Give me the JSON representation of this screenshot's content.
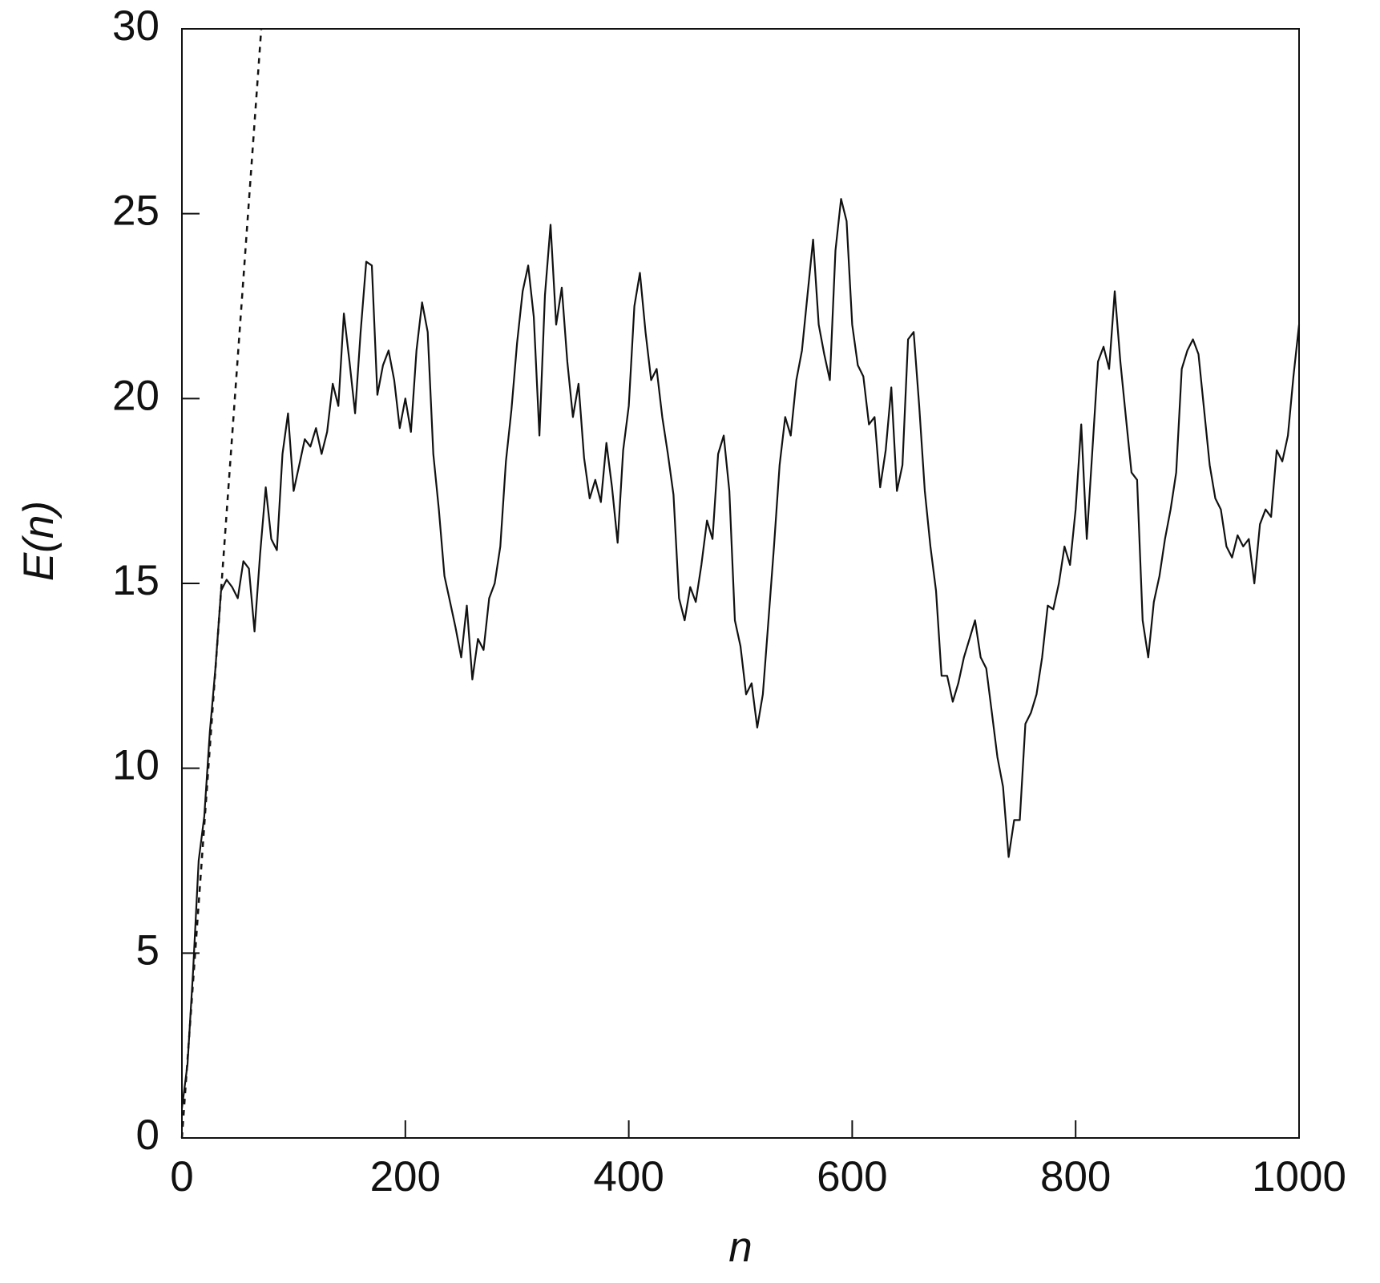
{
  "chart_data": {
    "type": "line",
    "xlabel": "n",
    "ylabel": "E(n)",
    "xlim": [
      0,
      1000
    ],
    "ylim": [
      0,
      30
    ],
    "xticks": [
      0,
      200,
      400,
      600,
      800,
      1000
    ],
    "yticks": [
      0,
      5,
      10,
      15,
      20,
      25,
      30
    ],
    "series": [
      {
        "color": "#111111",
        "dashed": false,
        "x": [
          0,
          5,
          10,
          15,
          20,
          25,
          30,
          35,
          40,
          45,
          50,
          55,
          60,
          65,
          70,
          75,
          80,
          85,
          90,
          95,
          100,
          105,
          110,
          115,
          120,
          125,
          130,
          135,
          140,
          145,
          150,
          155,
          160,
          165,
          170,
          175,
          180,
          185,
          190,
          195,
          200,
          205,
          210,
          215,
          220,
          225,
          230,
          235,
          240,
          245,
          250,
          255,
          260,
          265,
          270,
          275,
          280,
          285,
          290,
          295,
          300,
          305,
          310,
          315,
          320,
          325,
          330,
          335,
          340,
          345,
          350,
          355,
          360,
          365,
          370,
          375,
          380,
          385,
          390,
          395,
          400,
          405,
          410,
          415,
          420,
          425,
          430,
          435,
          440,
          445,
          450,
          455,
          460,
          465,
          470,
          475,
          480,
          485,
          490,
          495,
          500,
          505,
          510,
          515,
          520,
          525,
          530,
          535,
          540,
          545,
          550,
          555,
          560,
          565,
          570,
          575,
          580,
          585,
          590,
          595,
          600,
          605,
          610,
          615,
          620,
          625,
          630,
          635,
          640,
          645,
          650,
          655,
          660,
          665,
          670,
          675,
          680,
          685,
          690,
          695,
          700,
          705,
          710,
          715,
          720,
          725,
          730,
          735,
          740,
          745,
          750,
          755,
          760,
          765,
          770,
          775,
          780,
          785,
          790,
          795,
          800,
          805,
          810,
          815,
          820,
          825,
          830,
          835,
          840,
          845,
          850,
          855,
          860,
          865,
          870,
          875,
          880,
          885,
          890,
          895,
          900,
          905,
          910,
          915,
          920,
          925,
          930,
          935,
          940,
          945,
          950,
          955,
          960,
          965,
          970,
          975,
          980,
          985,
          990,
          995,
          1000
        ],
        "values": [
          0.8,
          2,
          4.5,
          7.5,
          8.7,
          11,
          12.7,
          14.8,
          15.1,
          14.9,
          14.6,
          15.6,
          15.4,
          13.7,
          15.8,
          17.6,
          16.2,
          15.9,
          18.5,
          19.6,
          17.5,
          18.2,
          18.9,
          18.7,
          19.2,
          18.5,
          19.1,
          20.4,
          19.8,
          22.3,
          21.0,
          19.6,
          21.8,
          23.7,
          23.6,
          20.1,
          20.9,
          21.3,
          20.5,
          19.2,
          20.0,
          19.1,
          21.3,
          22.6,
          21.8,
          18.5,
          17.0,
          15.2,
          14.5,
          13.8,
          13.0,
          14.4,
          12.4,
          13.5,
          13.2,
          14.6,
          15.0,
          16.0,
          18.3,
          19.7,
          21.5,
          22.9,
          23.6,
          22.2,
          19.0,
          22.8,
          24.7,
          22.0,
          23.0,
          21.0,
          19.5,
          20.4,
          18.4,
          17.3,
          17.8,
          17.2,
          18.8,
          17.6,
          16.1,
          18.6,
          19.8,
          22.5,
          23.4,
          21.8,
          20.5,
          20.8,
          19.5,
          18.5,
          17.4,
          14.6,
          14.0,
          14.9,
          14.5,
          15.5,
          16.7,
          16.2,
          18.5,
          19.0,
          17.5,
          14.0,
          13.3,
          12.0,
          12.3,
          11.1,
          12.0,
          14.0,
          16.0,
          18.2,
          19.5,
          19.0,
          20.5,
          21.3,
          22.8,
          24.3,
          22.0,
          21.2,
          20.5,
          24.0,
          25.4,
          24.8,
          22.0,
          20.9,
          20.6,
          19.3,
          19.5,
          17.6,
          18.6,
          20.3,
          17.5,
          18.2,
          21.6,
          21.8,
          19.8,
          17.5,
          16.0,
          14.8,
          12.5,
          12.5,
          11.8,
          12.3,
          13.0,
          13.5,
          14.0,
          13.0,
          12.7,
          11.5,
          10.3,
          9.5,
          7.6,
          8.6,
          8.6,
          11.2,
          11.5,
          12.0,
          13.0,
          14.4,
          14.3,
          15.0,
          16.0,
          15.5,
          17.0,
          19.3,
          16.2,
          18.6,
          21.0,
          21.4,
          20.8,
          22.9,
          21.0,
          19.5,
          18.0,
          17.8,
          14.0,
          13.0,
          14.5,
          15.2,
          16.2,
          17.0,
          18.0,
          20.8,
          21.3,
          21.6,
          21.2,
          19.7,
          18.2,
          17.3,
          17.0,
          16.0,
          15.7,
          16.3,
          16.0,
          16.2,
          15.0,
          16.6,
          17.0,
          16.8,
          18.6,
          18.3,
          19.0,
          20.6,
          22.0
        ]
      },
      {
        "color": "#111111",
        "dashed": true,
        "x": [
          0,
          71
        ],
        "values": [
          0,
          30
        ]
      }
    ]
  }
}
